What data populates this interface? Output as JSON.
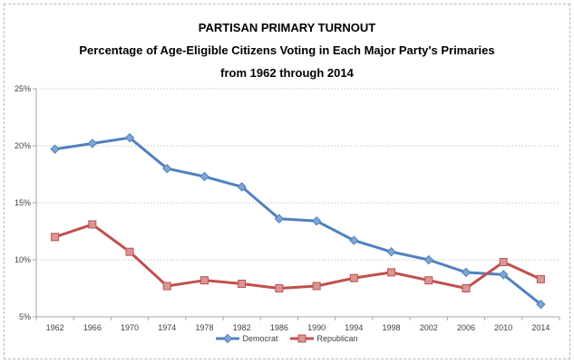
{
  "header": {
    "title": "PARTISAN PRIMARY TURNOUT",
    "subtitle_line1": "Percentage of Age-Eligible Citizens Voting in Each Major Party's Primaries",
    "subtitle_line2": "from 1962 through 2014"
  },
  "chart_data": {
    "type": "line",
    "title": "PARTISAN PRIMARY TURNOUT",
    "subtitle": "Percentage of Age-Eligible Citizens Voting in Each Major Party's Primaries from 1962 through 2014",
    "categories": [
      "1962",
      "1966",
      "1970",
      "1974",
      "1978",
      "1982",
      "1986",
      "1990",
      "1994",
      "1998",
      "2002",
      "2006",
      "2010",
      "2014"
    ],
    "series": [
      {
        "name": "Democrat",
        "marker": "diamond",
        "color": "#4F81BD",
        "marker_fill": "#7FA5D3",
        "values": [
          19.7,
          20.2,
          20.7,
          18.0,
          17.3,
          16.4,
          13.6,
          13.4,
          11.7,
          10.7,
          10.0,
          8.9,
          8.7,
          6.1
        ]
      },
      {
        "name": "Republican",
        "marker": "square",
        "color": "#C0504D",
        "marker_fill": "#D99694",
        "values": [
          12.0,
          13.1,
          10.7,
          7.7,
          8.2,
          7.9,
          7.5,
          7.7,
          8.4,
          8.9,
          8.2,
          7.5,
          9.8,
          8.3
        ]
      }
    ],
    "xlabel": "",
    "ylabel": "",
    "ylim": [
      5,
      25
    ],
    "yticks": [
      5,
      10,
      15,
      20,
      25
    ],
    "ytick_labels": [
      "5%",
      "10%",
      "15%",
      "20%",
      "25%"
    ],
    "grid": "horizontal-dotted",
    "legend_position": "bottom-center",
    "axis_color": "#a6a6a6",
    "gridline_color": "#c6c6c6",
    "label_color": "#404040"
  }
}
